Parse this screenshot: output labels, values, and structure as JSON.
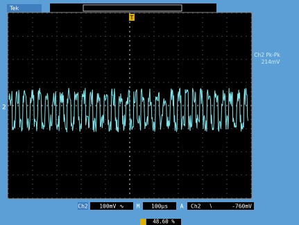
{
  "header": {
    "brand": "Tek"
  },
  "screen": {
    "channel_marker": "2",
    "trigger_marker": "T"
  },
  "measurement": {
    "label": "Ch2 Pk-Pk",
    "value": "214mV"
  },
  "status": {
    "channel": "Ch2",
    "scale": "100mV ∿",
    "timebase_label": "M",
    "timebase": "100µs",
    "trigger_label": "A",
    "trigger_source": "Ch2",
    "trigger_slope": "∖",
    "trigger_level": "-760mV"
  },
  "footer": {
    "position": "48.60 %"
  }
}
